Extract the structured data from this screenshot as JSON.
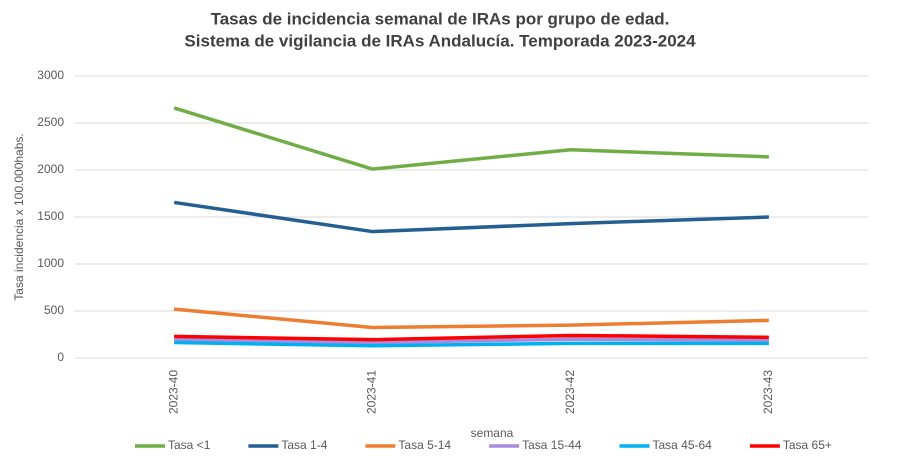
{
  "chart_data": {
    "type": "line",
    "title": "Tasas de incidencia semanal de IRAs por grupo de edad.",
    "subtitle": "Sistema de vigilancia de IRAs Andalucía. Temporada 2023-2024",
    "y_label": "Tasa incidencia x 100.000habs.",
    "x_label": "semana",
    "categories": [
      "2023-40",
      "2023-41",
      "2023-42",
      "2023-43"
    ],
    "series": [
      {
        "name": "Tasa <1",
        "color": "#70ad47",
        "values": [
          2660,
          2010,
          2215,
          2140
        ]
      },
      {
        "name": "Tasa 1-4",
        "color": "#255e91",
        "values": [
          1655,
          1345,
          1430,
          1500
        ]
      },
      {
        "name": "Tasa 5-14",
        "color": "#ed7d31",
        "values": [
          520,
          325,
          350,
          400
        ]
      },
      {
        "name": "Tasa 15-44",
        "color": "#a78bdf",
        "values": [
          200,
          165,
          200,
          190
        ]
      },
      {
        "name": "Tasa 45-64",
        "color": "#00b0f0",
        "values": [
          165,
          130,
          155,
          155
        ]
      },
      {
        "name": "Tasa 65+",
        "color": "#ff0000",
        "values": [
          230,
          195,
          240,
          220
        ]
      }
    ],
    "ylim": [
      0,
      3000
    ],
    "yticks": [
      0,
      500,
      1000,
      1500,
      2000,
      2500,
      3000
    ],
    "grid": true,
    "legend": "bottom"
  }
}
